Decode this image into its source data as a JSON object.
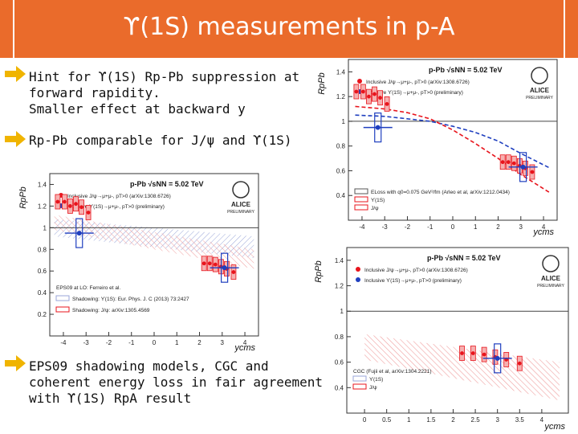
{
  "slide": {
    "title": "ϒ(1S) measurements in p-A",
    "bullets": [
      {
        "lines": [
          "Hint for ϒ(1S) Rp-Pb suppression at",
          "forward rapidity.",
          "Smaller effect at backward y"
        ]
      },
      {
        "lines": [
          "Rp-Pb comparable for J/ψ and ϒ(1S)"
        ]
      },
      {
        "lines": [
          "EPS09 shadowing models, CGC and",
          "coherent energy loss in fair agreement",
          "with ϒ(1S) RpA result"
        ]
      }
    ]
  },
  "colors": {
    "title_bg": "#ea6b2b",
    "jpsi": "#e8141c",
    "upsilon": "#1f3fbf",
    "arrow": "#f0b400"
  },
  "chart_data": [
    {
      "type": "scatter",
      "id": "top-right",
      "ylabel": "RpPb",
      "xlabel": "ycms",
      "header": "p-Pb √sNN = 5.02 TeV",
      "logo": {
        "name": "ALICE",
        "sub": "PRELIMINARY"
      },
      "xlim": [
        -4.6,
        4.6
      ],
      "ylim": [
        0.2,
        1.5
      ],
      "xticks": [
        -4,
        -3,
        -2,
        -1,
        0,
        1,
        2,
        3,
        4
      ],
      "yticks": [
        0.4,
        0.6,
        0.8,
        1,
        1.2,
        1.4
      ],
      "legend": [
        {
          "label": "Inclusive J/ψ→μ+μ-, pT>0 (arXiv:1308.6726)",
          "color": "#e8141c"
        },
        {
          "label": "Inclusive ϒ(1S)→μ+μ-, pT>0 (preliminary)",
          "color": "#1f3fbf"
        }
      ],
      "model_legend": [
        "ELoss with q0=0.075 GeV²/fm (Arleo et al, arXiv:1212.0434)",
        "ϒ(1S)",
        "J/ψ"
      ],
      "series": [
        {
          "name": "Inclusive J/ψ",
          "x": [
            -4.25,
            -3.95,
            -3.7,
            -3.45,
            -3.2,
            -2.9,
            2.2,
            2.45,
            2.7,
            2.95,
            3.2,
            3.5
          ],
          "y": [
            1.24,
            1.24,
            1.2,
            1.22,
            1.19,
            1.14,
            0.67,
            0.67,
            0.66,
            0.64,
            0.62,
            0.59
          ]
        },
        {
          "name": "Inclusive ϒ(1S)",
          "x": [
            -3.3,
            3.1
          ],
          "y": [
            0.95,
            0.63
          ]
        }
      ],
      "curves": [
        {
          "name": "ϒ(1S)",
          "x": [
            -4.3,
            -3,
            -2,
            -1,
            0,
            1,
            2,
            3,
            4.3
          ],
          "y": [
            1.05,
            1.04,
            1.02,
            1.0,
            0.96,
            0.91,
            0.84,
            0.74,
            0.62
          ]
        },
        {
          "name": "J/ψ",
          "x": [
            -4.3,
            -3,
            -2,
            -1,
            0,
            1,
            2,
            3,
            4.3
          ],
          "y": [
            1.12,
            1.1,
            1.07,
            1.02,
            0.93,
            0.82,
            0.7,
            0.57,
            0.42
          ]
        }
      ]
    },
    {
      "type": "scatter",
      "id": "middle-left",
      "ylabel": "RpPb",
      "xlabel": "ycms",
      "header": "p-Pb √sNN = 5.02 TeV",
      "logo": {
        "name": "ALICE",
        "sub": "PRELIMINARY"
      },
      "xlim": [
        -4.6,
        4.6
      ],
      "ylim": [
        0,
        1.5
      ],
      "xticks": [
        -4,
        -3,
        -2,
        -1,
        0,
        1,
        2,
        3,
        4
      ],
      "yticks": [
        0.2,
        0.4,
        0.6,
        0.8,
        1,
        1.2,
        1.4
      ],
      "legend": [
        {
          "label": "Inclusive J/ψ→μ+μ-, pT>0 (arXiv:1308.6726)",
          "color": "#e8141c"
        },
        {
          "label": "Inclusive ϒ(1S)→μ+μ-, pT>0 (preliminary)",
          "color": "#1f3fbf"
        }
      ],
      "model_title": "EPS09 at LO: Ferreiro et al.",
      "model_legend": [
        "Shadowing: ϒ(1S): Eur. Phys. J. C (2013) 73:2427",
        "Shadowing: J/ψ: arXiv:1305.4569"
      ],
      "series": [
        {
          "name": "Inclusive J/ψ",
          "x": [
            -4.25,
            -3.95,
            -3.7,
            -3.45,
            -3.2,
            -2.9,
            2.2,
            2.45,
            2.7,
            2.95,
            3.2,
            3.5
          ],
          "y": [
            1.24,
            1.24,
            1.2,
            1.22,
            1.19,
            1.14,
            0.67,
            0.67,
            0.66,
            0.64,
            0.62,
            0.59
          ]
        },
        {
          "name": "Inclusive ϒ(1S)",
          "x": [
            -3.3,
            3.1
          ],
          "y": [
            0.95,
            0.63
          ]
        }
      ]
    },
    {
      "type": "scatter",
      "id": "bottom-right",
      "ylabel": "RpPb",
      "xlabel": "ycms",
      "header": "p-Pb √sNN = 5.02 TeV",
      "logo": {
        "name": "ALICE",
        "sub": "PRELIMINARY"
      },
      "xlim": [
        -0.4,
        4.6
      ],
      "ylim": [
        0.2,
        1.5
      ],
      "xticks": [
        0,
        0.5,
        1,
        1.5,
        2,
        2.5,
        3,
        3.5,
        4
      ],
      "yticks": [
        0.4,
        0.6,
        0.8,
        1,
        1.2,
        1.4
      ],
      "legend": [
        {
          "label": "Inclusive J/ψ→μ+μ-, pT>0 (arXiv:1308.6726)",
          "color": "#e8141c"
        },
        {
          "label": "Inclusive ϒ(1S)→μ+μ-, pT>0 (preliminary)",
          "color": "#1f3fbf"
        }
      ],
      "model_title": "CGC (Fujii et al, arXiv:1304.2221)",
      "model_legend": [
        "ϒ(1S)",
        "J/ψ"
      ],
      "series": [
        {
          "name": "Inclusive J/ψ",
          "x": [
            2.2,
            2.45,
            2.7,
            2.95,
            3.2,
            3.5
          ],
          "y": [
            0.67,
            0.67,
            0.66,
            0.64,
            0.62,
            0.59
          ]
        },
        {
          "name": "Inclusive ϒ(1S)",
          "x": [
            3.0
          ],
          "y": [
            0.63
          ]
        }
      ]
    }
  ]
}
